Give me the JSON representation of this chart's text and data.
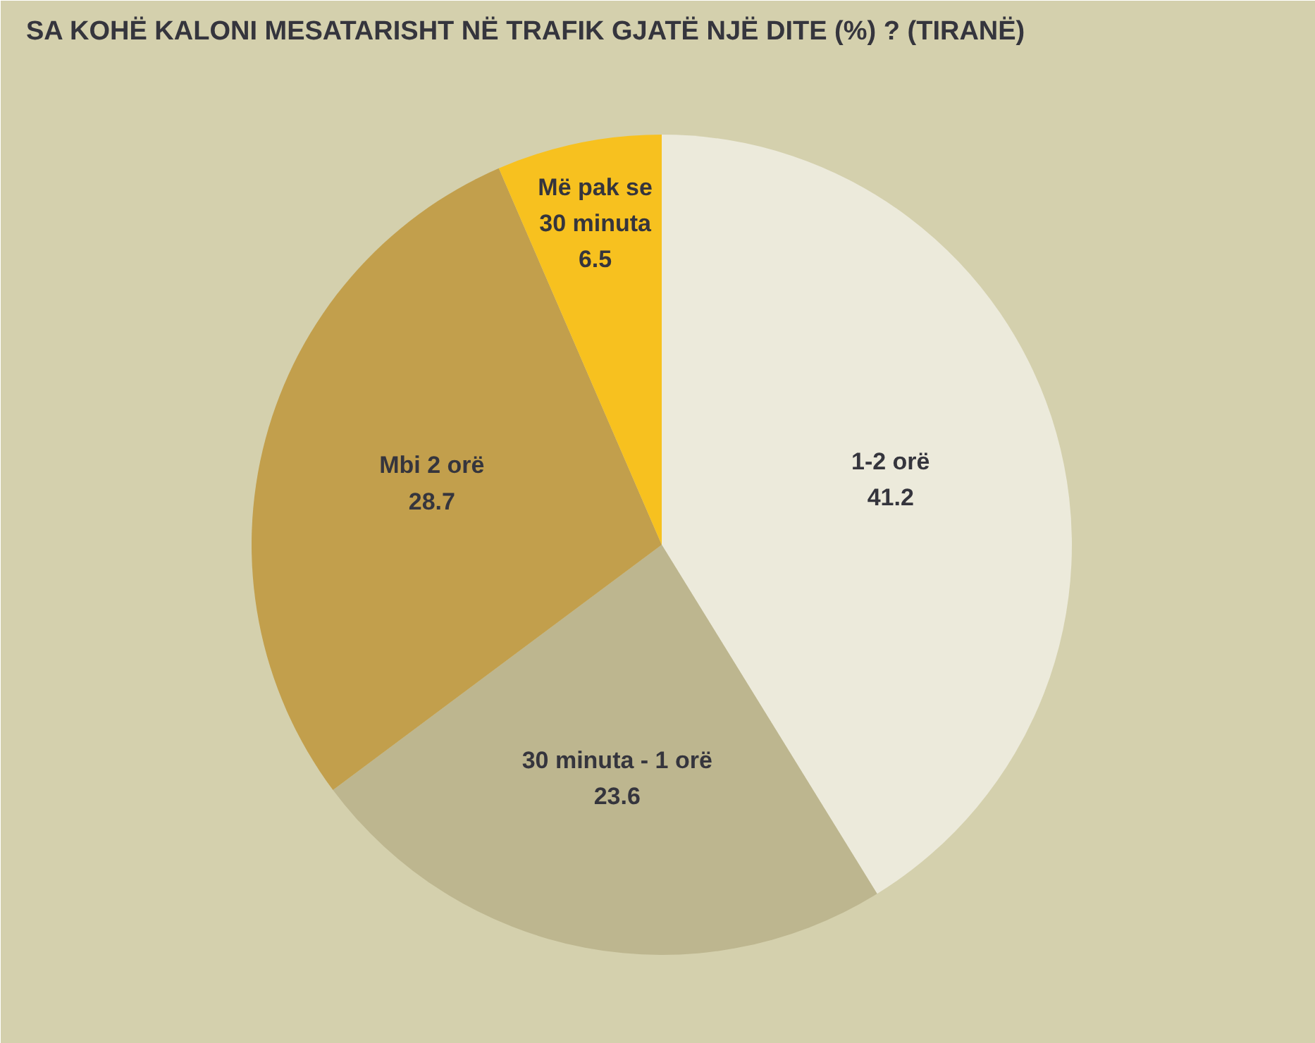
{
  "chart_data": {
    "type": "pie",
    "title": "SA KOHË KALONI MESATARISHT NË TRAFIK GJATË NJË DITE (%) ? (TIRANË)",
    "categories": [
      "1-2 orë",
      "30 minuta - 1 orë",
      "Mbi 2 orë",
      "Më pak se 30 minuta"
    ],
    "values": [
      41.2,
      23.6,
      28.7,
      6.5
    ],
    "colors": [
      "#eceadb",
      "#bdb68f",
      "#c29f4c",
      "#f7c11f"
    ],
    "data_labels": true
  }
}
